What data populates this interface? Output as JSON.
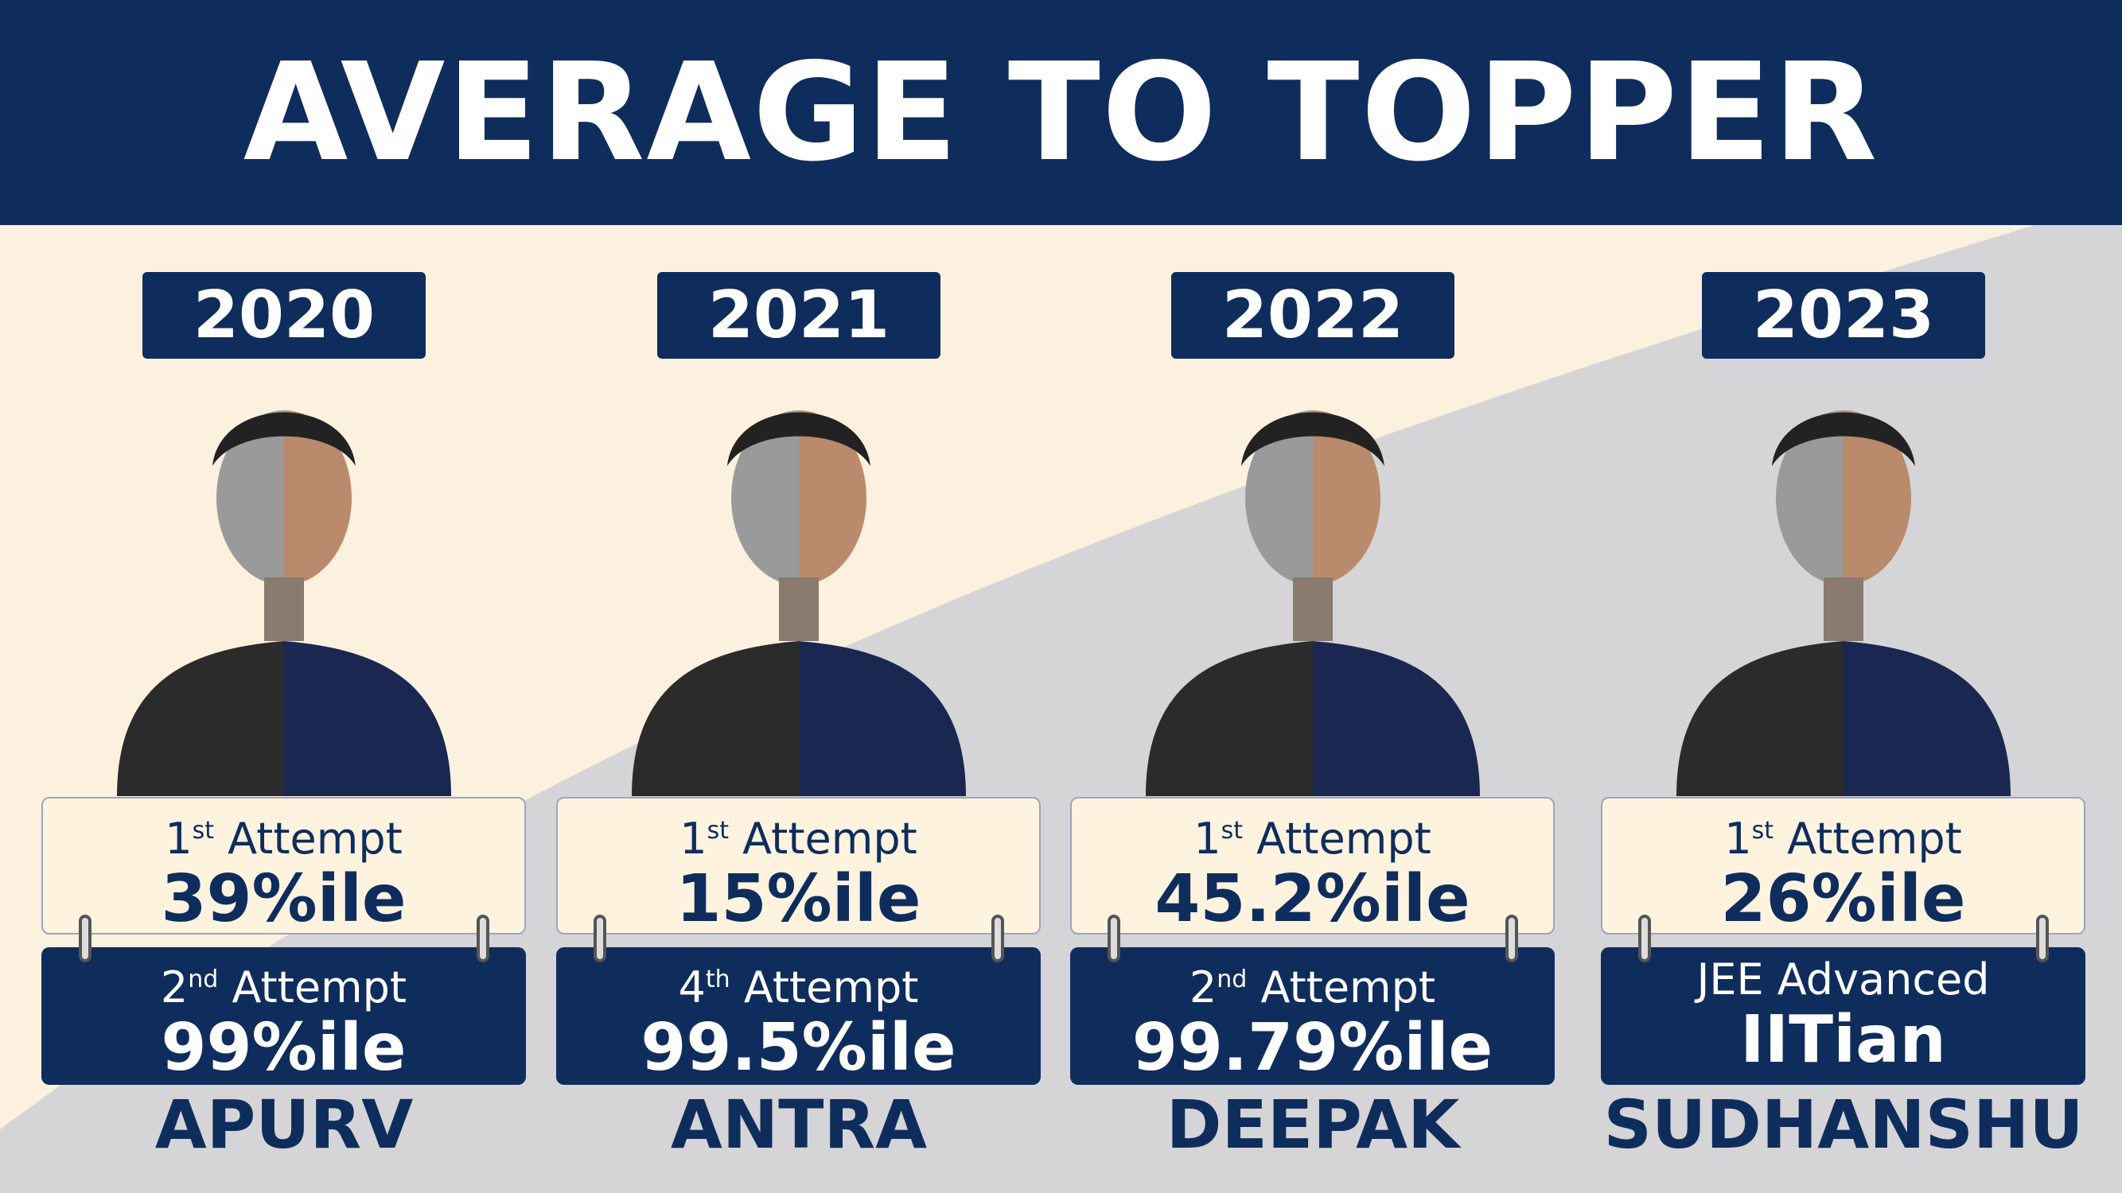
{
  "header": {
    "title": "AVERAGE TO TOPPER"
  },
  "students": [
    {
      "year": "2020",
      "name": "APURV",
      "first": {
        "ordinal": "1",
        "suffix": "st",
        "word": "Attempt",
        "score": "39%ile"
      },
      "second": {
        "ordinal": "2",
        "suffix": "nd",
        "word": "Attempt",
        "score": "99%ile"
      }
    },
    {
      "year": "2021",
      "name": "ANTRA",
      "first": {
        "ordinal": "1",
        "suffix": "st",
        "word": "Attempt",
        "score": "15%ile"
      },
      "second": {
        "ordinal": "4",
        "suffix": "th",
        "word": "Attempt",
        "score": "99.5%ile"
      }
    },
    {
      "year": "2022",
      "name": "DEEPAK",
      "first": {
        "ordinal": "1",
        "suffix": "st",
        "word": "Attempt",
        "score": "45.2%ile"
      },
      "second": {
        "ordinal": "2",
        "suffix": "nd",
        "word": "Attempt",
        "score": "99.79%ile"
      }
    },
    {
      "year": "2023",
      "name": "SUDHANSHU",
      "first": {
        "ordinal": "1",
        "suffix": "st",
        "word": "Attempt",
        "score": "26%ile"
      },
      "second": {
        "word": "JEE Advanced",
        "score": "IITian"
      }
    }
  ]
}
